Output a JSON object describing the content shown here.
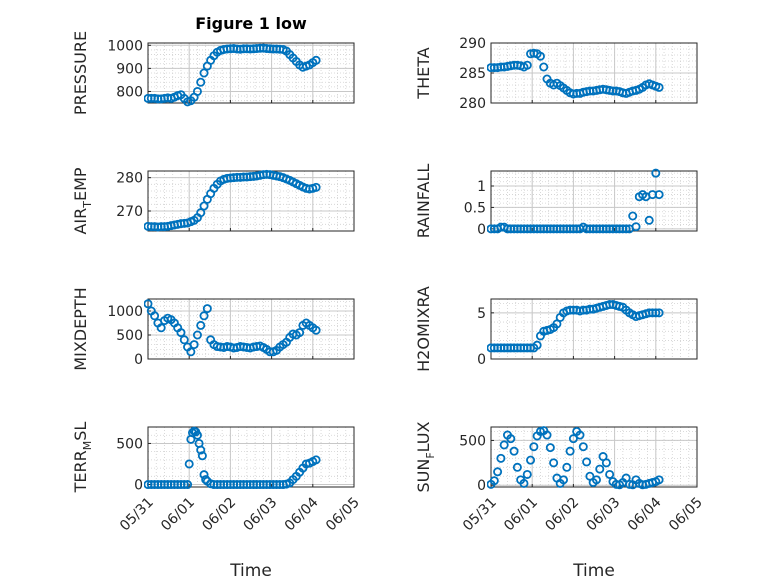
{
  "figure": {
    "title": "Figure 1 low"
  },
  "colors": {
    "marker": "#0072BD",
    "axis": "#262626"
  },
  "chart_data": [
    {
      "type": "scatter",
      "name": "pressure",
      "title": "Figure 1 low",
      "ylabel": "PRESSURE",
      "xlabel": "",
      "xlim": [
        0,
        5
      ],
      "ylim": [
        750,
        1010
      ],
      "yticks": [
        800,
        900,
        1000
      ],
      "xticks": [],
      "xticklabels": [],
      "grid": true,
      "x": [
        0.0,
        0.08,
        0.16,
        0.24,
        0.32,
        0.4,
        0.48,
        0.56,
        0.64,
        0.72,
        0.8,
        0.88,
        0.96,
        1.04,
        1.12,
        1.2,
        1.28,
        1.36,
        1.44,
        1.52,
        1.6,
        1.68,
        1.76,
        1.84,
        1.92,
        2.0,
        2.08,
        2.16,
        2.24,
        2.32,
        2.4,
        2.48,
        2.56,
        2.64,
        2.72,
        2.8,
        2.88,
        2.96,
        3.04,
        3.12,
        3.2,
        3.28,
        3.36,
        3.44,
        3.52,
        3.6,
        3.68,
        3.76,
        3.84,
        3.92,
        4.0,
        4.08
      ],
      "y": [
        770,
        770,
        770,
        768,
        768,
        770,
        772,
        770,
        775,
        782,
        786,
        770,
        755,
        760,
        775,
        800,
        840,
        880,
        910,
        935,
        955,
        970,
        978,
        982,
        984,
        985,
        986,
        984,
        983,
        985,
        985,
        984,
        985,
        986,
        987,
        988,
        986,
        985,
        984,
        984,
        983,
        982,
        975,
        960,
        945,
        930,
        915,
        905,
        910,
        915,
        925,
        935
      ]
    },
    {
      "type": "scatter",
      "name": "theta",
      "ylabel": "THETA",
      "xlabel": "",
      "xlim": [
        0,
        5
      ],
      "ylim": [
        280,
        290
      ],
      "yticks": [
        280,
        285,
        290
      ],
      "xticks": [],
      "xticklabels": [],
      "grid": true,
      "x": [
        0.0,
        0.08,
        0.16,
        0.24,
        0.32,
        0.4,
        0.48,
        0.56,
        0.64,
        0.72,
        0.8,
        0.88,
        0.96,
        1.04,
        1.12,
        1.2,
        1.28,
        1.36,
        1.44,
        1.52,
        1.6,
        1.68,
        1.76,
        1.84,
        1.92,
        2.0,
        2.08,
        2.16,
        2.24,
        2.32,
        2.4,
        2.48,
        2.56,
        2.64,
        2.72,
        2.8,
        2.88,
        2.96,
        3.04,
        3.12,
        3.2,
        3.28,
        3.36,
        3.44,
        3.52,
        3.6,
        3.68,
        3.76,
        3.84,
        3.92,
        4.0,
        4.08
      ],
      "y": [
        285.9,
        285.9,
        285.9,
        286.0,
        286.0,
        286.1,
        286.2,
        286.3,
        286.3,
        286.2,
        286.0,
        286.3,
        288.2,
        288.3,
        288.2,
        287.8,
        286.0,
        284.0,
        283.3,
        283.0,
        283.3,
        282.9,
        282.5,
        282.1,
        281.7,
        281.5,
        281.6,
        281.6,
        281.8,
        281.9,
        282.0,
        282.0,
        282.1,
        282.2,
        282.3,
        282.2,
        282.1,
        282.0,
        282.0,
        281.9,
        281.7,
        281.6,
        281.8,
        282.0,
        282.1,
        282.3,
        282.6,
        283.0,
        283.2,
        283.0,
        282.8,
        282.6
      ]
    },
    {
      "type": "scatter",
      "name": "air-temp",
      "ylabel": "AIR_TEMP",
      "xlabel": "",
      "xlim": [
        0,
        5
      ],
      "ylim": [
        264,
        282
      ],
      "yticks": [
        270,
        280
      ],
      "xticks": [],
      "xticklabels": [],
      "grid": true,
      "x": [
        0.0,
        0.08,
        0.16,
        0.24,
        0.32,
        0.4,
        0.48,
        0.56,
        0.64,
        0.72,
        0.8,
        0.88,
        0.96,
        1.04,
        1.12,
        1.2,
        1.28,
        1.36,
        1.44,
        1.52,
        1.6,
        1.68,
        1.76,
        1.84,
        1.92,
        2.0,
        2.08,
        2.16,
        2.24,
        2.32,
        2.4,
        2.48,
        2.56,
        2.64,
        2.72,
        2.8,
        2.88,
        2.96,
        3.04,
        3.12,
        3.2,
        3.28,
        3.36,
        3.44,
        3.52,
        3.6,
        3.68,
        3.76,
        3.84,
        3.92,
        4.0,
        4.08
      ],
      "y": [
        265.4,
        265.3,
        265.3,
        265.2,
        265.3,
        265.3,
        265.4,
        265.6,
        265.8,
        266.0,
        266.2,
        266.3,
        266.4,
        266.8,
        267.2,
        268.0,
        269.5,
        271.5,
        273.5,
        275.2,
        276.8,
        278.0,
        279.0,
        279.5,
        279.8,
        279.9,
        280.0,
        280.1,
        280.1,
        280.2,
        280.2,
        280.3,
        280.4,
        280.5,
        280.7,
        280.9,
        281.0,
        280.9,
        280.7,
        280.5,
        280.3,
        280.0,
        279.6,
        279.2,
        278.7,
        278.2,
        277.7,
        277.2,
        276.8,
        276.6,
        276.8,
        277.1
      ]
    },
    {
      "type": "scatter",
      "name": "rainfall",
      "ylabel": "RAINFALL",
      "xlabel": "",
      "xlim": [
        0,
        5
      ],
      "ylim": [
        -0.05,
        1.35
      ],
      "yticks": [
        0,
        0.5,
        1
      ],
      "xticks": [],
      "xticklabels": [],
      "grid": true,
      "x": [
        0.0,
        0.08,
        0.16,
        0.24,
        0.32,
        0.4,
        0.48,
        0.56,
        0.64,
        0.72,
        0.8,
        0.88,
        0.96,
        1.04,
        1.12,
        1.2,
        1.28,
        1.36,
        1.44,
        1.52,
        1.6,
        1.68,
        1.76,
        1.84,
        1.92,
        2.0,
        2.08,
        2.16,
        2.24,
        2.32,
        2.4,
        2.48,
        2.56,
        2.64,
        2.72,
        2.8,
        2.88,
        2.96,
        3.04,
        3.12,
        3.2,
        3.28,
        3.36,
        3.44,
        3.52,
        3.6,
        3.68,
        3.76,
        3.84,
        3.92,
        4.0,
        4.08
      ],
      "y": [
        0,
        0,
        0,
        0.04,
        0.04,
        0,
        0,
        0,
        0,
        0,
        0,
        0,
        0,
        0,
        0,
        0,
        0,
        0,
        0,
        0,
        0,
        0,
        0,
        0,
        0,
        0,
        0,
        0,
        0.04,
        0,
        0,
        0,
        0,
        0,
        0,
        0,
        0,
        0,
        0,
        0,
        0,
        0,
        0,
        0.3,
        0.05,
        0.75,
        0.8,
        0.75,
        0.2,
        0.8,
        1.3,
        0.8
      ]
    },
    {
      "type": "scatter",
      "name": "mixdepth",
      "ylabel": "MIXDEPTH",
      "xlabel": "",
      "xlim": [
        0,
        5
      ],
      "ylim": [
        0,
        1250
      ],
      "yticks": [
        0,
        500,
        1000
      ],
      "xticks": [],
      "xticklabels": [],
      "grid": true,
      "x": [
        0.0,
        0.08,
        0.16,
        0.24,
        0.32,
        0.4,
        0.48,
        0.56,
        0.64,
        0.72,
        0.8,
        0.88,
        0.96,
        1.04,
        1.12,
        1.2,
        1.28,
        1.36,
        1.44,
        1.52,
        1.6,
        1.68,
        1.76,
        1.84,
        1.92,
        2.0,
        2.08,
        2.16,
        2.24,
        2.32,
        2.4,
        2.48,
        2.56,
        2.64,
        2.72,
        2.8,
        2.88,
        2.96,
        3.04,
        3.12,
        3.2,
        3.28,
        3.36,
        3.44,
        3.52,
        3.6,
        3.68,
        3.76,
        3.84,
        3.92,
        4.0,
        4.08
      ],
      "y": [
        1150,
        1000,
        900,
        750,
        650,
        800,
        850,
        820,
        750,
        650,
        550,
        400,
        250,
        150,
        300,
        500,
        700,
        900,
        1050,
        400,
        300,
        260,
        250,
        240,
        260,
        250,
        230,
        240,
        260,
        250,
        240,
        230,
        250,
        260,
        270,
        240,
        200,
        150,
        150,
        180,
        250,
        300,
        350,
        450,
        520,
        500,
        550,
        700,
        750,
        700,
        650,
        600
      ]
    },
    {
      "type": "scatter",
      "name": "h2omixra",
      "ylabel": "H2OMIXRA",
      "xlabel": "",
      "xlim": [
        0,
        5
      ],
      "ylim": [
        0,
        6.5
      ],
      "yticks": [
        0,
        5
      ],
      "xticks": [],
      "xticklabels": [],
      "grid": true,
      "x": [
        0.0,
        0.08,
        0.16,
        0.24,
        0.32,
        0.4,
        0.48,
        0.56,
        0.64,
        0.72,
        0.8,
        0.88,
        0.96,
        1.04,
        1.12,
        1.2,
        1.28,
        1.36,
        1.44,
        1.52,
        1.6,
        1.68,
        1.76,
        1.84,
        1.92,
        2.0,
        2.08,
        2.16,
        2.24,
        2.32,
        2.4,
        2.48,
        2.56,
        2.64,
        2.72,
        2.8,
        2.88,
        2.96,
        3.04,
        3.12,
        3.2,
        3.28,
        3.36,
        3.44,
        3.52,
        3.6,
        3.68,
        3.76,
        3.84,
        3.92,
        4.0,
        4.08
      ],
      "y": [
        1.2,
        1.2,
        1.2,
        1.2,
        1.2,
        1.2,
        1.2,
        1.2,
        1.2,
        1.2,
        1.2,
        1.2,
        1.2,
        1.2,
        1.5,
        2.5,
        3.0,
        3.1,
        3.2,
        3.4,
        3.8,
        4.5,
        5.0,
        5.2,
        5.3,
        5.3,
        5.3,
        5.2,
        5.3,
        5.3,
        5.4,
        5.4,
        5.5,
        5.6,
        5.7,
        5.8,
        5.9,
        5.9,
        5.8,
        5.7,
        5.6,
        5.3,
        5.0,
        4.8,
        4.6,
        4.7,
        4.8,
        4.9,
        5.0,
        5.0,
        5.0,
        5.0
      ]
    },
    {
      "type": "scatter",
      "name": "terr-msl",
      "ylabel": "TERR_MSL",
      "xlabel": "Time",
      "xlim": [
        0,
        5
      ],
      "ylim": [
        -30,
        700
      ],
      "yticks": [
        0,
        500
      ],
      "xticks": [
        0,
        1,
        2,
        3,
        4,
        5
      ],
      "xticklabels": [
        "05/31",
        "06/01",
        "06/02",
        "06/03",
        "06/04",
        "06/05"
      ],
      "grid": true,
      "x": [
        0.0,
        0.08,
        0.16,
        0.24,
        0.32,
        0.4,
        0.48,
        0.56,
        0.64,
        0.72,
        0.8,
        0.88,
        0.96,
        1.0,
        1.04,
        1.08,
        1.12,
        1.16,
        1.2,
        1.24,
        1.28,
        1.32,
        1.36,
        1.4,
        1.44,
        1.52,
        1.6,
        1.68,
        1.76,
        1.84,
        1.92,
        2.0,
        2.08,
        2.16,
        2.24,
        2.32,
        2.4,
        2.48,
        2.56,
        2.64,
        2.72,
        2.8,
        2.88,
        2.96,
        3.04,
        3.12,
        3.2,
        3.28,
        3.36,
        3.44,
        3.52,
        3.6,
        3.68,
        3.76,
        3.84,
        3.92,
        4.0,
        4.08
      ],
      "y": [
        0,
        0,
        0,
        0,
        0,
        0,
        0,
        0,
        0,
        0,
        0,
        0,
        0,
        250,
        550,
        630,
        650,
        640,
        600,
        500,
        420,
        350,
        120,
        60,
        40,
        10,
        0,
        0,
        0,
        0,
        0,
        0,
        0,
        0,
        0,
        0,
        0,
        0,
        0,
        0,
        0,
        0,
        0,
        0,
        0,
        0,
        0,
        0,
        5,
        20,
        60,
        100,
        150,
        200,
        250,
        260,
        280,
        300
      ]
    },
    {
      "type": "scatter",
      "name": "sun-flux",
      "ylabel": "SUN_FLUX",
      "xlabel": "Time",
      "xlim": [
        0,
        5
      ],
      "ylim": [
        -20,
        650
      ],
      "yticks": [
        0,
        500
      ],
      "xticks": [
        0,
        1,
        2,
        3,
        4,
        5
      ],
      "xticklabels": [
        "05/31",
        "06/01",
        "06/02",
        "06/03",
        "06/04",
        "06/05"
      ],
      "grid": true,
      "x": [
        0.0,
        0.08,
        0.16,
        0.24,
        0.32,
        0.4,
        0.48,
        0.56,
        0.64,
        0.72,
        0.8,
        0.88,
        0.96,
        1.04,
        1.12,
        1.2,
        1.28,
        1.36,
        1.44,
        1.52,
        1.6,
        1.68,
        1.76,
        1.84,
        1.92,
        2.0,
        2.08,
        2.16,
        2.24,
        2.32,
        2.4,
        2.48,
        2.56,
        2.64,
        2.72,
        2.8,
        2.88,
        2.96,
        3.04,
        3.12,
        3.2,
        3.28,
        3.36,
        3.44,
        3.52,
        3.6,
        3.68,
        3.76,
        3.84,
        3.92,
        4.0,
        4.08
      ],
      "y": [
        10,
        50,
        150,
        300,
        450,
        560,
        520,
        380,
        200,
        60,
        20,
        120,
        280,
        430,
        550,
        600,
        610,
        560,
        420,
        250,
        80,
        20,
        60,
        200,
        380,
        520,
        600,
        560,
        430,
        260,
        100,
        30,
        60,
        180,
        320,
        250,
        120,
        40,
        10,
        5,
        30,
        80,
        10,
        5,
        60,
        20,
        5,
        10,
        20,
        30,
        40,
        60
      ]
    }
  ]
}
